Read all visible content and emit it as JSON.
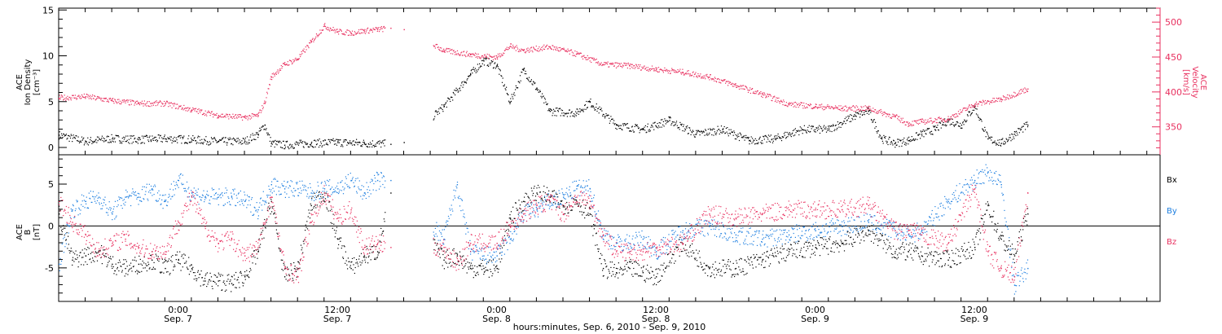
{
  "colors": {
    "black": "#000000",
    "pink": "#e8305f",
    "blue": "#1e7fe0",
    "axis": "#000000"
  },
  "xaxis": {
    "caption": "hours:minutes, Sep.  6, 2010 - Sep.  9, 2010",
    "ticks": [
      {
        "t": 0,
        "time": "0:00",
        "date": "Sep. 7"
      },
      {
        "t": 12,
        "time": "12:00",
        "date": "Sep. 7"
      },
      {
        "t": 24,
        "time": "0:00",
        "date": "Sep. 8"
      },
      {
        "t": 36,
        "time": "12:00",
        "date": "Sep. 8"
      },
      {
        "t": 48,
        "time": "0:00",
        "date": "Sep. 9"
      },
      {
        "t": 60,
        "time": "12:00",
        "date": "Sep. 9"
      }
    ]
  },
  "panel1": {
    "ylabel_left": [
      "ACE",
      "Ion Density",
      "[cm⁻³]"
    ],
    "ylabel_right": [
      "ACE",
      "Velocity",
      "[km/s]"
    ]
  },
  "panel2": {
    "ylabel_left": [
      "ACE",
      "B",
      "[nT]"
    ],
    "legend": [
      "Bx",
      "By",
      "Bz"
    ]
  },
  "chart_data": [
    {
      "type": "scatter",
      "xlabel": "hours:minutes, Sep.  6, 2010 - Sep.  9, 2010",
      "ylabel": "ACE Ion Density [cm⁻³]",
      "ylabel_right": "ACE Velocity [km/s]",
      "x_unit": "hours from Sep. 7 0:00",
      "xlim": [
        -9,
        74
      ],
      "ylim": [
        -0.8,
        15.2
      ],
      "ylim_right": [
        310,
        520
      ],
      "yticks": [
        0,
        5,
        10,
        15
      ],
      "yticks_right": [
        350,
        400,
        450,
        500
      ],
      "series": [
        {
          "color": "black",
          "axis": "left",
          "x": [
            -9,
            -7,
            -5,
            -3,
            -1,
            1,
            3,
            5,
            6,
            6.5,
            7,
            8,
            10,
            12,
            14,
            16,
            17,
            20,
            22,
            23,
            24,
            25,
            26,
            27,
            28,
            30,
            31,
            33,
            35,
            37,
            39,
            41,
            43,
            45,
            47,
            49,
            51,
            52,
            53,
            54,
            55,
            56,
            57,
            58,
            59,
            60,
            61,
            62,
            63,
            64
          ],
          "y": [
            1.4,
            0.7,
            1.0,
            0.9,
            1.0,
            0.9,
            0.7,
            0.7,
            1.5,
            2.5,
            0.5,
            0.3,
            0.5,
            0.6,
            0.5,
            0.4,
            0.6,
            4.5,
            8.0,
            9.5,
            9.0,
            5.0,
            8.5,
            6.5,
            4.0,
            3.8,
            5.0,
            2.5,
            2.0,
            3.0,
            1.5,
            2.0,
            0.8,
            1.0,
            2.0,
            2.0,
            3.5,
            4.0,
            1.0,
            0.5,
            0.8,
            1.5,
            2.0,
            3.0,
            2.5,
            4.5,
            1.0,
            0.5,
            1.5,
            2.5
          ]
        },
        {
          "color": "pink",
          "axis": "right",
          "x": [
            -9,
            -7,
            -5,
            -3,
            -1,
            1,
            3,
            5,
            6,
            6.5,
            7,
            8,
            9,
            10,
            11,
            12,
            13,
            14,
            15,
            16,
            17,
            20,
            22,
            24,
            25,
            26,
            28,
            30,
            32,
            34,
            36,
            38,
            40,
            42,
            44,
            46,
            48,
            50,
            52,
            54,
            55,
            56,
            58,
            60,
            62,
            64
          ],
          "y": [
            392,
            394,
            388,
            384,
            384,
            375,
            367,
            364,
            367,
            385,
            422,
            440,
            448,
            472,
            495,
            487,
            485,
            488,
            490,
            492,
            490,
            460,
            454,
            450,
            466,
            460,
            465,
            455,
            440,
            438,
            433,
            429,
            422,
            410,
            397,
            383,
            380,
            377,
            377,
            365,
            355,
            358,
            362,
            383,
            390,
            405
          ]
        }
      ]
    },
    {
      "type": "scatter",
      "xlabel": "hours:minutes, Sep.  6, 2010 - Sep.  9, 2010",
      "ylabel": "ACE B [nT]",
      "x_unit": "hours from Sep. 7 0:00",
      "xlim": [
        -9,
        74
      ],
      "ylim": [
        -9,
        8.5
      ],
      "yticks": [
        -5,
        0,
        5
      ],
      "zero_line": true,
      "series": [
        {
          "name": "Bx",
          "color": "black",
          "x": [
            -9,
            -8,
            -7,
            -6,
            -5,
            -4,
            -3,
            -2,
            -1,
            0,
            1,
            2,
            3,
            4,
            5,
            6,
            7,
            8,
            9,
            10,
            11,
            12,
            13,
            14,
            15,
            16,
            20,
            21,
            22,
            23,
            24,
            25,
            26,
            27,
            28,
            29,
            30,
            31,
            32,
            33,
            34,
            35,
            36,
            38,
            40,
            42,
            44,
            46,
            48,
            50,
            52,
            54,
            55,
            56,
            58,
            60,
            61,
            62,
            63,
            64
          ],
          "y": [
            1.5,
            -4.0,
            -3.5,
            -3.0,
            -4.5,
            -5.0,
            -4.5,
            -4.0,
            -5.0,
            -4.0,
            -5.0,
            -6.5,
            -6.5,
            -6.8,
            -6.0,
            -3.0,
            3.0,
            -6.0,
            -5.0,
            2.5,
            4.0,
            -1.5,
            -5.0,
            -3.5,
            -3.0,
            4.0,
            -4.0,
            -3.5,
            -5.0,
            -5.0,
            -5.0,
            1.0,
            3.0,
            4.0,
            3.5,
            2.5,
            3.0,
            1.5,
            -5.0,
            -5.5,
            -5.0,
            -5.5,
            -6.0,
            -2.0,
            -5.0,
            -5.0,
            -4.0,
            -3.0,
            -2.5,
            -2.0,
            -0.5,
            -3.0,
            -3.0,
            -3.5,
            -4.0,
            -2.5,
            2.5,
            -1.5,
            -3.5,
            1.5
          ]
        },
        {
          "name": "By",
          "color": "blue",
          "x": [
            -9,
            -8,
            -7,
            -6,
            -5,
            -4,
            -3,
            -2,
            -1,
            0,
            1,
            2,
            3,
            4,
            5,
            6,
            7,
            8,
            9,
            10,
            11,
            12,
            13,
            14,
            15,
            16,
            20,
            21,
            22,
            23,
            24,
            25,
            26,
            27,
            28,
            29,
            30,
            31,
            32,
            33,
            34,
            35,
            36,
            38,
            40,
            42,
            44,
            46,
            48,
            50,
            52,
            54,
            55,
            56,
            58,
            60,
            61,
            62,
            63,
            64
          ],
          "y": [
            -4.5,
            2.0,
            3.0,
            3.5,
            1.5,
            3.5,
            3.5,
            4.5,
            3.0,
            5.5,
            4.0,
            3.5,
            3.5,
            3.5,
            3.0,
            2.0,
            5.0,
            4.5,
            4.5,
            4.0,
            4.5,
            4.5,
            5.5,
            4.0,
            5.5,
            5.5,
            -1.5,
            5.0,
            -3.0,
            -3.5,
            -3.5,
            -1.5,
            1.5,
            2.0,
            3.0,
            3.5,
            4.5,
            4.5,
            -1.0,
            -2.0,
            -2.0,
            -1.5,
            -3.0,
            -0.5,
            0.0,
            -1.0,
            -1.5,
            -1.0,
            -0.5,
            0.0,
            0.5,
            -0.5,
            -1.0,
            -0.5,
            3.0,
            5.5,
            6.5,
            5.0,
            -7.0,
            -5.0
          ]
        },
        {
          "name": "Bz",
          "color": "pink",
          "x": [
            -9,
            -8,
            -7,
            -6,
            -5,
            -4,
            -3,
            -2,
            -1,
            0,
            1,
            2,
            3,
            4,
            5,
            6,
            7,
            8,
            9,
            10,
            11,
            12,
            13,
            14,
            15,
            16,
            20,
            21,
            22,
            23,
            24,
            25,
            26,
            27,
            28,
            29,
            30,
            31,
            32,
            33,
            34,
            35,
            36,
            38,
            40,
            42,
            44,
            46,
            48,
            50,
            52,
            54,
            55,
            56,
            58,
            60,
            61,
            62,
            63,
            64
          ],
          "y": [
            3.0,
            0.5,
            -1.0,
            -3.0,
            -2.0,
            -1.5,
            -2.5,
            -3.0,
            -3.0,
            0.5,
            3.5,
            0.0,
            -2.0,
            -1.5,
            -3.5,
            -2.5,
            3.5,
            -5.0,
            -6.0,
            0.5,
            4.0,
            1.0,
            2.0,
            -2.5,
            -2.0,
            -2.5,
            -2.5,
            -4.5,
            -2.0,
            -2.0,
            -2.0,
            0.0,
            1.5,
            2.5,
            3.0,
            1.5,
            3.5,
            3.0,
            -1.0,
            -3.0,
            -3.0,
            -3.0,
            -2.5,
            -2.0,
            1.5,
            1.0,
            1.5,
            2.0,
            2.0,
            2.0,
            2.5,
            -0.5,
            -0.5,
            -1.0,
            -2.0,
            4.5,
            -3.0,
            -5.0,
            -6.0,
            4.0
          ]
        }
      ]
    }
  ]
}
